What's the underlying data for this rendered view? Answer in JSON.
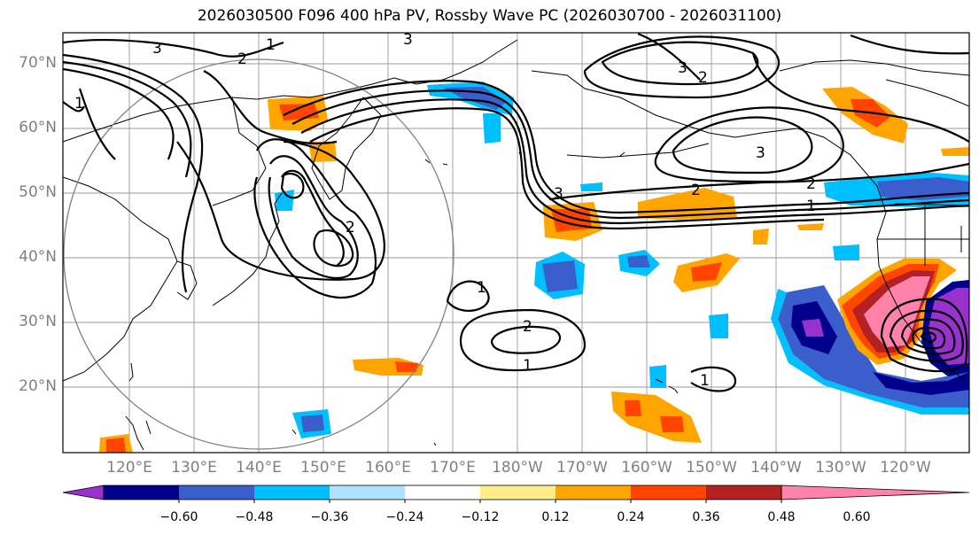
{
  "title": "2026030500 F096 400 hPa PV, Rossby Wave PC (2026030700 - 2026031100)",
  "lat_labels": [
    "70°N",
    "60°N",
    "50°N",
    "40°N",
    "30°N",
    "20°N"
  ],
  "lon_labels": [
    "120°E",
    "130°E",
    "140°E",
    "150°E",
    "160°E",
    "170°E",
    "180°W",
    "170°W",
    "160°W",
    "150°W",
    "140°W",
    "130°W",
    "120°W"
  ],
  "colorbar": {
    "labels": [
      "−0.60",
      "−0.48",
      "−0.36",
      "−0.24",
      "−0.12",
      "0.12",
      "0.24",
      "0.36",
      "0.48",
      "0.60"
    ],
    "colors": [
      "#9932cc",
      "#00008b",
      "#3a5fcd",
      "#00bfff",
      "#b0e2ff",
      "#ffffff",
      "#ffec8b",
      "#ffa500",
      "#ff4500",
      "#b22222",
      "#ff82ab"
    ]
  },
  "contour_labels": {
    "c1_north": "1",
    "c1_nw": "1",
    "c1_mid": "1",
    "c1_low": "1",
    "c1_east": "1",
    "c1_se": "1",
    "c2_trough": "2",
    "c2_nw": "2",
    "c2_north": "2",
    "c2_east": "2",
    "c2_jet": "2",
    "c2_low": "2",
    "c3_north": "3",
    "c3_nw": "3",
    "c3_east": "3",
    "c3_jet": "3"
  },
  "fill_colors": {
    "neg_purple": "#9932cc",
    "neg_navy": "#00008b",
    "neg_blue": "#3a5fcd",
    "neg_cyan": "#00bfff",
    "neg_light": "#b0e2ff",
    "pos_yellow": "#ffec8b",
    "pos_orange": "#ffa500",
    "pos_red": "#ff4500",
    "pos_darkred": "#b22222",
    "pos_pink": "#ff82ab"
  }
}
